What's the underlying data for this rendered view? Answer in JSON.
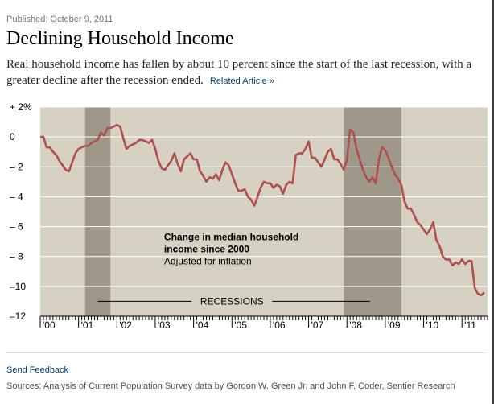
{
  "header": {
    "published": "Published: October 9, 2011",
    "title": "Declining Household Income",
    "subhead": "Real household income has fallen by about 10 percent since the start of the last recession, with a greater decline after the recession ended.",
    "related_link": "Related Article »"
  },
  "footer": {
    "feedback": "Send Feedback",
    "sources": "Sources: Analysis of Current Population Survey data by Gordon W. Green Jr. and John F. Coder, Sentier Research"
  },
  "colors": {
    "plot_bg": "#d6d1c3",
    "recession": "#9e978a",
    "line": "#b0504a",
    "grid": "#ffffff"
  },
  "chart_data": {
    "type": "line",
    "title": "Change in median household income since 2000",
    "annotation_lines": [
      "Change in median household",
      "income since 2000",
      "Adjusted for inflation"
    ],
    "recession_label": "RECESSIONS",
    "ylim": [
      -12,
      2
    ],
    "y_ticks": [
      2,
      0,
      -2,
      -4,
      -6,
      -8,
      -10,
      -12
    ],
    "y_tick_labels": [
      "+ 2%",
      "0",
      "– 2",
      "– 4",
      "– 6",
      "– 8",
      "–10",
      "–12"
    ],
    "x_range": [
      2000.0,
      2011.667
    ],
    "x_ticks": [
      2000,
      2001,
      2002,
      2003,
      2004,
      2005,
      2006,
      2007,
      2008,
      2009,
      2010,
      2011
    ],
    "x_tick_labels": [
      "'00",
      "'01",
      "'02",
      "'03",
      "'04",
      "'05",
      "'06",
      "'07",
      "'08",
      "'09",
      "'10",
      "'11"
    ],
    "recessions": [
      [
        2001.17,
        2001.83
      ],
      [
        2007.92,
        2009.42
      ]
    ],
    "series": [
      {
        "name": "Median household income change",
        "x": [
          2000.0,
          2000.083,
          2000.167,
          2000.25,
          2000.333,
          2000.417,
          2000.5,
          2000.583,
          2000.667,
          2000.75,
          2000.833,
          2000.917,
          2001.0,
          2001.083,
          2001.167,
          2001.25,
          2001.333,
          2001.417,
          2001.5,
          2001.583,
          2001.667,
          2001.75,
          2001.833,
          2001.917,
          2002.0,
          2002.083,
          2002.167,
          2002.25,
          2002.333,
          2002.417,
          2002.5,
          2002.583,
          2002.667,
          2002.75,
          2002.833,
          2002.917,
          2003.0,
          2003.083,
          2003.167,
          2003.25,
          2003.333,
          2003.417,
          2003.5,
          2003.583,
          2003.667,
          2003.75,
          2003.833,
          2003.917,
          2004.0,
          2004.083,
          2004.167,
          2004.25,
          2004.333,
          2004.417,
          2004.5,
          2004.583,
          2004.667,
          2004.75,
          2004.833,
          2004.917,
          2005.0,
          2005.083,
          2005.167,
          2005.25,
          2005.333,
          2005.417,
          2005.5,
          2005.583,
          2005.667,
          2005.75,
          2005.833,
          2005.917,
          2006.0,
          2006.083,
          2006.167,
          2006.25,
          2006.333,
          2006.417,
          2006.5,
          2006.583,
          2006.667,
          2006.75,
          2006.833,
          2006.917,
          2007.0,
          2007.083,
          2007.167,
          2007.25,
          2007.333,
          2007.417,
          2007.5,
          2007.583,
          2007.667,
          2007.75,
          2007.833,
          2007.917,
          2008.0,
          2008.083,
          2008.167,
          2008.25,
          2008.333,
          2008.417,
          2008.5,
          2008.583,
          2008.667,
          2008.75,
          2008.833,
          2008.917,
          2009.0,
          2009.083,
          2009.167,
          2009.25,
          2009.333,
          2009.417,
          2009.5,
          2009.583,
          2009.667,
          2009.75,
          2009.833,
          2009.917,
          2010.0,
          2010.083,
          2010.167,
          2010.25,
          2010.333,
          2010.417,
          2010.5,
          2010.583,
          2010.667,
          2010.75,
          2010.833,
          2010.917,
          2011.0,
          2011.083,
          2011.167,
          2011.25,
          2011.333,
          2011.417,
          2011.5,
          2011.583
        ],
        "values": [
          0.0,
          0.0,
          -0.7,
          -0.7,
          -1.0,
          -1.2,
          -1.6,
          -1.9,
          -2.2,
          -2.3,
          -1.7,
          -1.1,
          -0.8,
          -0.7,
          -0.6,
          -0.6,
          -0.4,
          -0.3,
          -0.2,
          0.3,
          0.1,
          0.6,
          0.6,
          0.7,
          0.8,
          0.7,
          -0.1,
          -0.8,
          -0.6,
          -0.5,
          -0.4,
          -0.2,
          -0.2,
          -0.3,
          -0.4,
          -0.2,
          -0.8,
          -1.6,
          -2.1,
          -2.2,
          -1.9,
          -1.6,
          -1.1,
          -1.8,
          -2.3,
          -1.5,
          -1.3,
          -1.1,
          -1.5,
          -1.5,
          -2.3,
          -2.6,
          -3.0,
          -2.7,
          -2.8,
          -2.5,
          -2.9,
          -2.2,
          -1.7,
          -1.9,
          -2.5,
          -3.1,
          -3.6,
          -3.6,
          -3.5,
          -4.0,
          -4.2,
          -4.6,
          -4.0,
          -3.4,
          -3.0,
          -3.1,
          -3.1,
          -3.4,
          -3.2,
          -3.3,
          -3.8,
          -3.2,
          -3.0,
          -3.1,
          -1.2,
          -1.1,
          -1.1,
          -0.8,
          -0.3,
          -1.4,
          -1.4,
          -1.7,
          -2.0,
          -1.5,
          -1.0,
          -0.8,
          -1.5,
          -1.5,
          -1.8,
          -2.2,
          -1.5,
          0.5,
          0.3,
          -0.8,
          -1.5,
          -2.2,
          -2.7,
          -3.0,
          -2.7,
          -3.1,
          -1.5,
          -0.7,
          -0.9,
          -1.4,
          -2.0,
          -2.5,
          -2.8,
          -3.2,
          -4.3,
          -4.8,
          -4.8,
          -5.2,
          -5.7,
          -5.9,
          -6.2,
          -6.5,
          -6.2,
          -5.7,
          -6.9,
          -7.3,
          -8.0,
          -8.2,
          -8.2,
          -8.6,
          -8.4,
          -8.5,
          -8.2,
          -8.5,
          -8.3,
          -8.3,
          -10.1,
          -10.5,
          -10.6,
          -10.4
        ]
      }
    ]
  }
}
